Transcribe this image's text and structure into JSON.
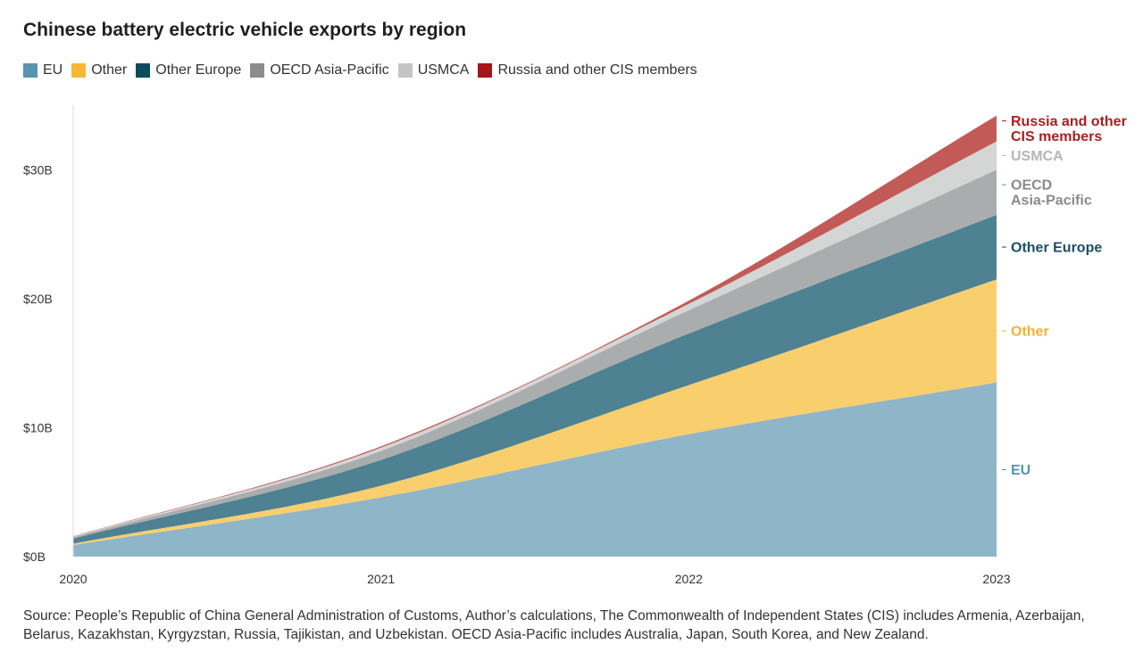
{
  "source_note": "Source: People’s Republic of China General Administration of Customs, Author’s calculations, The Commonwealth of Independent States (CIS) includes Armenia, Azerbaijan, Belarus, Kazakhstan, Kyrgyzstan, Russia, Tajikistan, and Uzbekistan. OECD Asia-Pacific includes Australia, Japan, South Korea, and New Zealand.",
  "chart_data": {
    "type": "area",
    "stacked": true,
    "title": "Chinese battery electric vehicle exports by region",
    "xlabel": "",
    "ylabel": "",
    "x": [
      2020,
      2021,
      2022,
      2023
    ],
    "x_tick_labels": [
      "2020",
      "2021",
      "2022",
      "2023"
    ],
    "ylim": [
      0,
      35
    ],
    "y_ticks": [
      0,
      10,
      20,
      30
    ],
    "y_tick_labels": [
      "$0B",
      "$10B",
      "$20B",
      "$30B"
    ],
    "grid": false,
    "legend_position": "top-left",
    "series": [
      {
        "name": "EU",
        "color": "#8fb5c8",
        "legend_color": "#5b93b1",
        "label_color": "#5b93b1",
        "end_label": [
          "EU"
        ],
        "values": [
          0.9,
          4.6,
          9.5,
          13.5
        ]
      },
      {
        "name": "Other",
        "color": "#f9cf6e",
        "legend_color": "#f7b733",
        "label_color": "#f2b134",
        "end_label": [
          "Other"
        ],
        "values": [
          0.1,
          0.9,
          3.8,
          8.0
        ]
      },
      {
        "name": "Other Europe",
        "color": "#4e8191",
        "legend_color": "#0c4a5c",
        "label_color": "#1a4f66",
        "end_label": [
          "Other Europe"
        ],
        "values": [
          0.4,
          2.0,
          4.0,
          5.0
        ]
      },
      {
        "name": "OECD Asia-Pacific",
        "color": "#a9adae",
        "legend_color": "#8c8c8c",
        "label_color": "#8a8a8a",
        "end_label": [
          "OECD",
          "Asia-Pacific"
        ],
        "values": [
          0.1,
          0.7,
          1.8,
          3.5
        ]
      },
      {
        "name": "USMCA",
        "color": "#d4d6d6",
        "legend_color": "#c4c4c4",
        "label_color": "#b5b5b5",
        "end_label": [
          "USMCA"
        ],
        "values": [
          0.05,
          0.25,
          0.5,
          2.2
        ]
      },
      {
        "name": "Russia and other CIS members",
        "color": "#c25b57",
        "legend_color": "#a5161a",
        "label_color": "#a91f22",
        "end_label": [
          "Russia and other",
          "CIS members"
        ],
        "values": [
          0.02,
          0.1,
          0.25,
          2.0
        ]
      }
    ]
  }
}
